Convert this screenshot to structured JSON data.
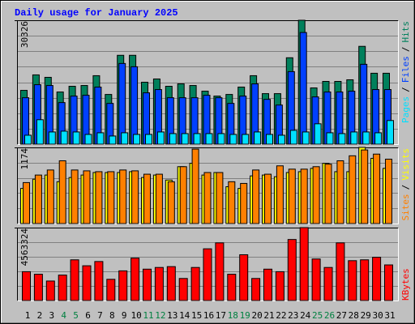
{
  "title": "Daily usage for January 2025",
  "categories": [
    "1",
    "2",
    "3",
    "4",
    "5",
    "6",
    "7",
    "8",
    "9",
    "10",
    "11",
    "12",
    "13",
    "14",
    "15",
    "16",
    "17",
    "18",
    "19",
    "20",
    "21",
    "22",
    "23",
    "24",
    "25",
    "26",
    "27",
    "28",
    "29",
    "30",
    "31"
  ],
  "category_colors": [
    "#000000",
    "#000000",
    "#000000",
    "#008040",
    "#008040",
    "#000000",
    "#000000",
    "#000000",
    "#000000",
    "#000000",
    "#008040",
    "#008040",
    "#000000",
    "#000000",
    "#000000",
    "#000000",
    "#000000",
    "#008040",
    "#008040",
    "#000000",
    "#000000",
    "#000000",
    "#000000",
    "#000000",
    "#008040",
    "#008040",
    "#000000",
    "#000000",
    "#000000",
    "#000000",
    "#000000"
  ],
  "legend_separator": "/",
  "chart_data": [
    {
      "type": "bar",
      "ylim": [
        0,
        30326
      ],
      "yticks": [
        30326
      ],
      "series": [
        {
          "name": "Hits",
          "color": "#00805c",
          "values": [
            13170,
            16960,
            16360,
            12770,
            14170,
            14360,
            16760,
            12170,
            21750,
            21750,
            15160,
            15960,
            14170,
            14760,
            14360,
            12970,
            11770,
            12170,
            13970,
            16760,
            12370,
            12370,
            21150,
            30326,
            13770,
            15360,
            15360,
            15760,
            23940,
            17360,
            17360
          ]
        },
        {
          "name": "Files",
          "color": "#0040ff",
          "values": [
            11370,
            14560,
            14360,
            10180,
            11770,
            11970,
            13970,
            9980,
            19750,
            18950,
            12570,
            13370,
            11370,
            11370,
            11370,
            11970,
            11370,
            9980,
            11770,
            14760,
            10970,
            9580,
            17760,
            27330,
            11570,
            12770,
            12770,
            12970,
            19550,
            13370,
            13370
          ]
        },
        {
          "name": "Pages",
          "color": "#00e0ff",
          "values": [
            2190,
            5990,
            2990,
            3190,
            2990,
            2390,
            2790,
            2000,
            2790,
            2390,
            2390,
            2990,
            2590,
            2590,
            2590,
            2590,
            2590,
            2390,
            2390,
            2990,
            2390,
            2190,
            3390,
            2990,
            4990,
            2790,
            2590,
            2990,
            2990,
            2790,
            5790
          ]
        }
      ]
    },
    {
      "type": "bar",
      "ylim": [
        0,
        1174
      ],
      "yticks": [
        1174
      ],
      "series": [
        {
          "name": "Visits",
          "color": "#ffff00",
          "values": [
            542,
            684,
            748,
            645,
            710,
            748,
            787,
            787,
            787,
            800,
            710,
            748,
            671,
            877,
            929,
            748,
            787,
            568,
            542,
            735,
            748,
            722,
            787,
            800,
            851,
            929,
            800,
            800,
            1174,
            1006,
            851
          ]
        },
        {
          "name": "Sites",
          "color": "#ff8000",
          "values": [
            632,
            748,
            826,
            968,
            826,
            813,
            800,
            800,
            826,
            813,
            761,
            761,
            645,
            877,
            1148,
            787,
            787,
            645,
            619,
            826,
            761,
            890,
            839,
            839,
            877,
            916,
            968,
            1045,
            1135,
            1071,
            993
          ]
        }
      ]
    },
    {
      "type": "bar",
      "ylim": [
        0,
        4563324
      ],
      "yticks": [
        4563324
      ],
      "series": [
        {
          "name": "KBytes",
          "color": "#ff0000",
          "values": [
            1804000,
            1645000,
            1220000,
            1592000,
            2547000,
            2175000,
            2441000,
            1327000,
            1857000,
            2653000,
            1963000,
            2069000,
            2122000,
            1380000,
            2069000,
            3237000,
            3608000,
            1645000,
            2865000,
            1380000,
            1963000,
            1804000,
            3820000,
            4563324,
            2600000,
            2069000,
            3608000,
            2494000,
            2547000,
            2706000,
            2229000
          ]
        }
      ]
    }
  ]
}
